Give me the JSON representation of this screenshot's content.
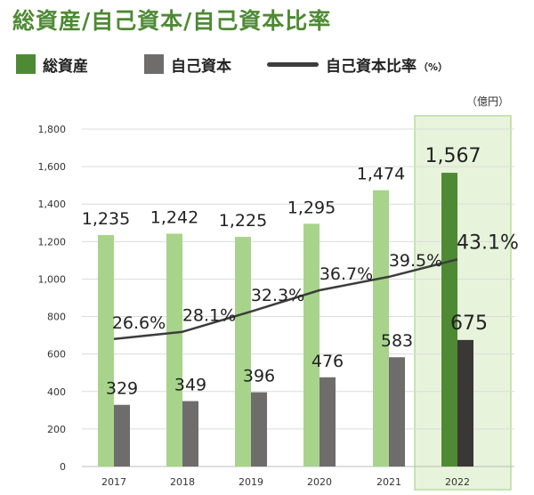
{
  "title": "総資産/自己資本/自己資本比率",
  "legend": {
    "total_assets": "総資産",
    "equity": "自己資本",
    "equity_ratio": "自己資本比率",
    "ratio_unit": "（%）"
  },
  "colors": {
    "title": "#4e8a34",
    "legend_green": "#4e8a34",
    "legend_gray": "#6f6c6c",
    "line": "#3d3d3d",
    "total_bar": "#a7d48a",
    "total_bar_highlight": "#4e8a34",
    "equity_bar": "#6f6c6c",
    "equity_bar_highlight": "#3b3737",
    "highlight_bg": "#e8f3dc",
    "highlight_border": "#b8dca0"
  },
  "chart_data": {
    "type": "bar",
    "unit_label": "（億円）",
    "categories": [
      "2017",
      "2018",
      "2019",
      "2020",
      "2021",
      "2022"
    ],
    "series": [
      {
        "name": "総資産",
        "values": [
          1235,
          1242,
          1225,
          1295,
          1474,
          1567
        ],
        "labels": [
          "1,235",
          "1,242",
          "1,225",
          "1,295",
          "1,474",
          "1,567"
        ]
      },
      {
        "name": "自己資本",
        "values": [
          329,
          349,
          396,
          476,
          583,
          675
        ],
        "labels": [
          "329",
          "349",
          "396",
          "476",
          "583",
          "675"
        ]
      },
      {
        "name": "自己資本比率",
        "type": "line",
        "values": [
          26.6,
          28.1,
          32.3,
          36.7,
          39.5,
          43.1
        ],
        "labels": [
          "26.6%",
          "28.1%",
          "32.3%",
          "36.7%",
          "39.5%",
          "43.1%"
        ]
      }
    ],
    "ylim": [
      0,
      1800
    ],
    "yticks": [
      0,
      200,
      400,
      600,
      800,
      1000,
      1200,
      1400,
      1600,
      1800
    ],
    "ytick_labels": [
      "0",
      "200",
      "400",
      "600",
      "800",
      "1,000",
      "1,200",
      "1,400",
      "1,600",
      "1,800"
    ],
    "ratio_line_scale": {
      "ratio_min": 26.6,
      "ratio_max": 43.1,
      "as_y_min": 680,
      "as_y_max": 1105
    },
    "highlight_category": "2022",
    "grid": true,
    "legend": "top-left"
  }
}
